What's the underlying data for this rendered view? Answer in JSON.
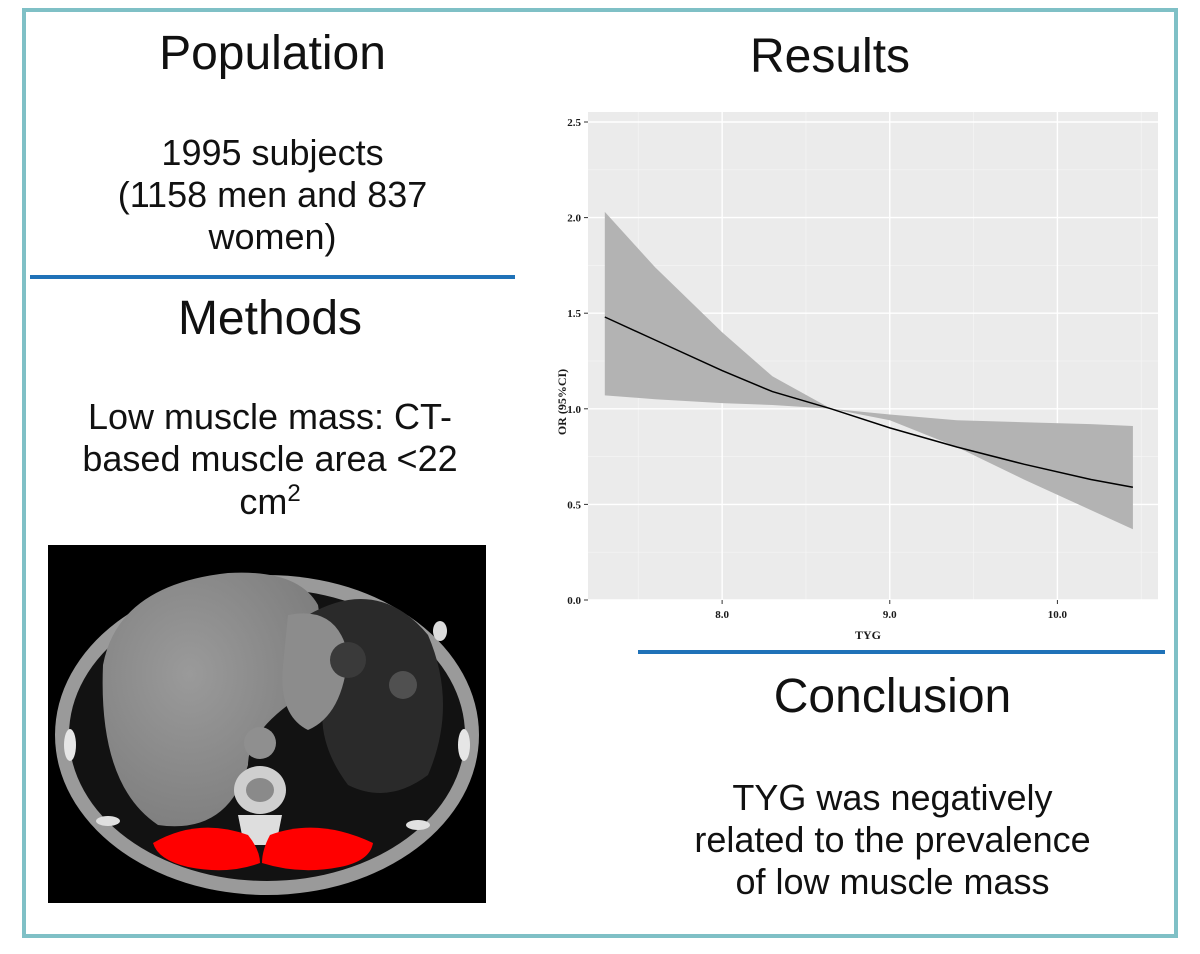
{
  "population": {
    "heading": "Population",
    "line1": "1995 subjects",
    "line2": "(1158 men and 837",
    "line3": "women)"
  },
  "methods": {
    "heading": "Methods",
    "line1": "Low muscle mass: CT-",
    "line2": "based muscle area <22",
    "line3": "cm",
    "superscript": "2"
  },
  "results": {
    "heading": "Results"
  },
  "conclusion": {
    "heading": "Conclusion",
    "line1": "TYG was negatively",
    "line2": "related to the prevalence",
    "line3": "of low muscle mass"
  },
  "colors": {
    "frame": "#7fc0c6",
    "divider": "#1f72b8",
    "muscle_highlight": "#ff0000",
    "plot_bg": "#ebebeb",
    "ci_band": "#b3b3b3"
  },
  "chart_data": {
    "type": "line",
    "xlabel": "TYG",
    "ylabel": "OR (95%CI)",
    "xlim": [
      7.2,
      10.6
    ],
    "ylim": [
      0,
      2.5
    ],
    "x_ticks": [
      {
        "value": 8.0,
        "label": "8.0"
      },
      {
        "value": 9.0,
        "label": "9.0"
      },
      {
        "value": 10.0,
        "label": "10.0"
      }
    ],
    "y_ticks": [
      {
        "value": 0.0,
        "label": "0.0"
      },
      {
        "value": 0.5,
        "label": "0.5"
      },
      {
        "value": 1.0,
        "label": "1.0"
      },
      {
        "value": 1.5,
        "label": "1.5"
      },
      {
        "value": 2.0,
        "label": "2.0"
      },
      {
        "value": 2.5,
        "label": "2.5"
      }
    ],
    "grid": true,
    "series": [
      {
        "x": [
          7.3,
          7.6,
          8.0,
          8.3,
          8.65,
          9.0,
          9.4,
          9.8,
          10.2,
          10.45
        ],
        "y": [
          1.48,
          1.36,
          1.2,
          1.09,
          1.0,
          0.9,
          0.8,
          0.71,
          0.63,
          0.59
        ],
        "lower": [
          1.07,
          1.05,
          1.03,
          1.02,
          1.0,
          0.94,
          0.8,
          0.63,
          0.47,
          0.37
        ],
        "upper": [
          2.03,
          1.74,
          1.4,
          1.17,
          1.0,
          0.97,
          0.94,
          0.93,
          0.92,
          0.91
        ]
      }
    ]
  }
}
